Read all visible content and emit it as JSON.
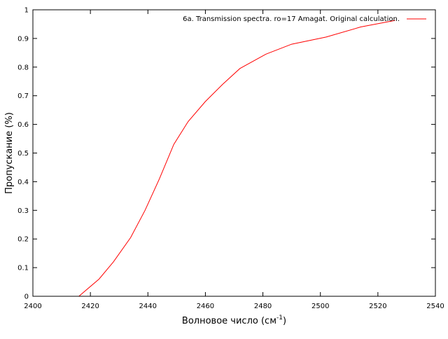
{
  "chart_data": {
    "type": "line",
    "title": "",
    "xlabel": "Волновое число (см",
    "xlabel_superscript": "-1",
    "xlabel_suffix": ")",
    "ylabel": "Пропускание (%)",
    "xlim": [
      2400,
      2540
    ],
    "ylim": [
      0,
      1
    ],
    "x_ticks": [
      2400,
      2420,
      2440,
      2460,
      2480,
      2500,
      2520,
      2540
    ],
    "y_ticks": [
      0,
      0.1,
      0.2,
      0.3,
      0.4,
      0.5,
      0.6,
      0.7,
      0.8,
      0.9,
      1
    ],
    "grid": false,
    "legend_position": "top-right",
    "series": [
      {
        "name": "6a. Transmission spectra. ro=17 Amagat. Original calculation.",
        "color": "#ff0000",
        "x": [
          2416,
          2423,
          2428,
          2434,
          2439,
          2444,
          2449,
          2454,
          2460,
          2466,
          2472,
          2481,
          2490,
          2502,
          2514,
          2526
        ],
        "y": [
          0.0,
          0.06,
          0.12,
          0.205,
          0.3,
          0.41,
          0.53,
          0.61,
          0.68,
          0.74,
          0.795,
          0.845,
          0.88,
          0.905,
          0.94,
          0.963
        ]
      }
    ]
  }
}
